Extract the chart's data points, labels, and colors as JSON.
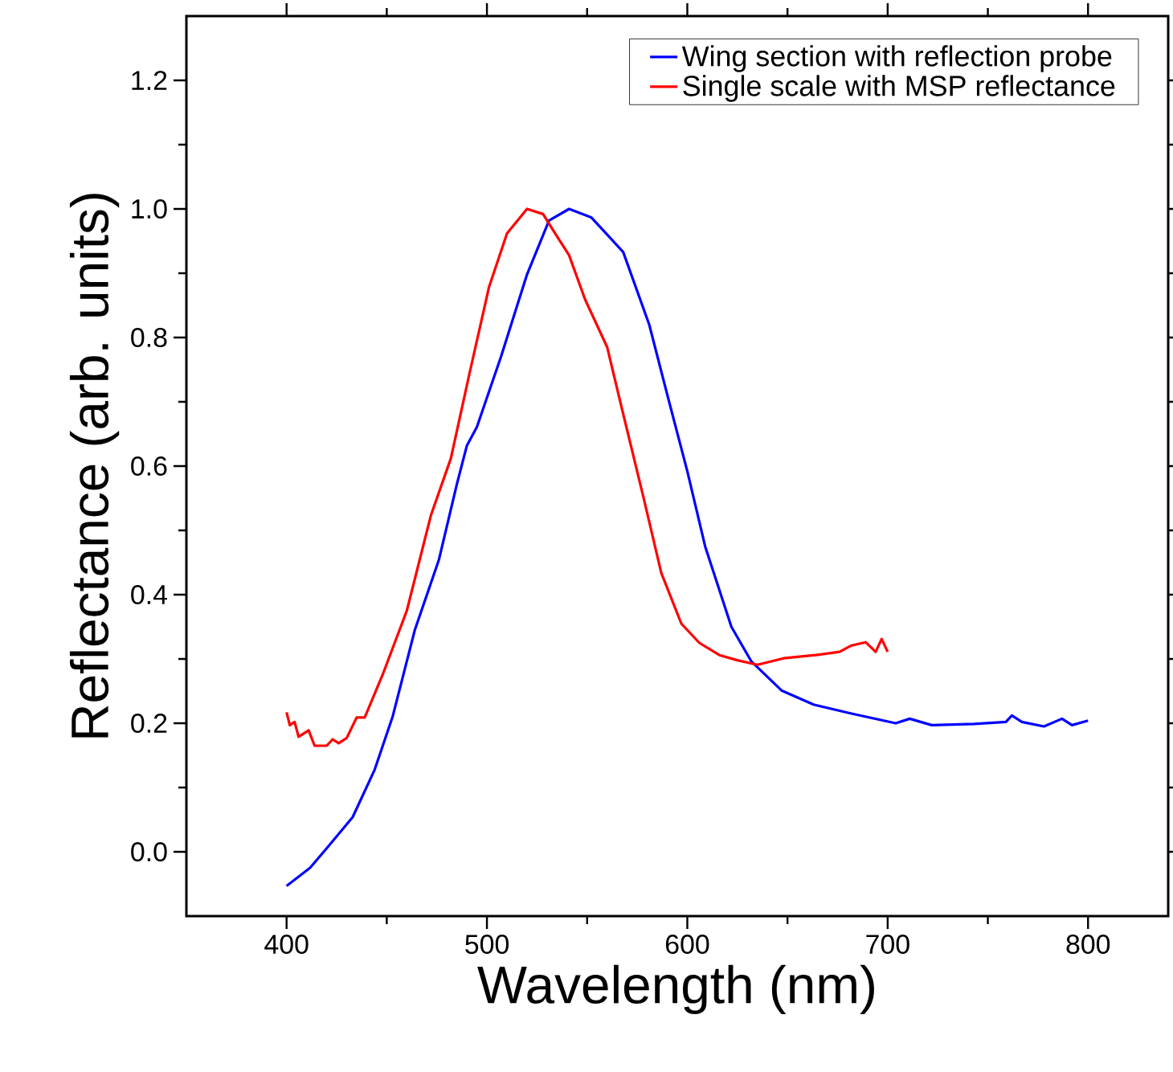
{
  "chart_data": {
    "type": "line",
    "xlabel": "Wavelength (nm)",
    "ylabel": "Reflectance (arb. units)",
    "xlim": [
      350,
      840
    ],
    "ylim": [
      -0.1,
      1.3
    ],
    "xticks": [
      400,
      500,
      600,
      700,
      800
    ],
    "yticks": [
      {
        "value": 0,
        "label": "0.0"
      },
      {
        "value": 0.2,
        "label": "0.2"
      },
      {
        "value": 0.4,
        "label": "0.4"
      },
      {
        "value": 0.6,
        "label": "0.6"
      },
      {
        "value": 0.8,
        "label": "0.8"
      },
      {
        "value": 1,
        "label": "1.0"
      },
      {
        "value": 1.2,
        "label": "1.2"
      }
    ],
    "grid": false,
    "legend": "top right",
    "marker": "none",
    "line_style": "solid",
    "series": [
      {
        "name": "Wing section with reflection probe",
        "color": "#0000ff",
        "x": [
          400,
          411.7,
          421,
          433,
          444,
          453,
          464,
          476,
          485,
          490,
          495,
          507,
          520,
          531,
          541,
          552,
          568,
          581,
          590,
          600,
          609,
          622,
          632,
          647,
          663,
          682,
          704,
          711,
          722,
          743,
          759,
          762,
          767,
          778,
          787,
          792,
          800
        ],
        "values": [
          -0.053,
          -0.025,
          0.009,
          0.054,
          0.128,
          0.211,
          0.345,
          0.454,
          0.572,
          0.632,
          0.661,
          0.77,
          0.898,
          0.982,
          1.0,
          0.987,
          0.933,
          0.82,
          0.711,
          0.592,
          0.474,
          0.35,
          0.296,
          0.251,
          0.229,
          0.215,
          0.2,
          0.207,
          0.197,
          0.199,
          0.202,
          0.212,
          0.202,
          0.195,
          0.207,
          0.197,
          0.204
        ]
      },
      {
        "name": "Single scale with MSP reflectance",
        "color": "#ff0000",
        "x": [
          400,
          401.6,
          404,
          406,
          411,
          414,
          420,
          423,
          426,
          430,
          435,
          439,
          448,
          460,
          472,
          482,
          491,
          501,
          510,
          520,
          528,
          534,
          541,
          549,
          560,
          568,
          578,
          587,
          597,
          606,
          616,
          625,
          635,
          648,
          664,
          676,
          682,
          689,
          694,
          697,
          700
        ],
        "values": [
          0.217,
          0.197,
          0.202,
          0.179,
          0.189,
          0.165,
          0.165,
          0.175,
          0.169,
          0.177,
          0.209,
          0.209,
          0.276,
          0.375,
          0.523,
          0.612,
          0.74,
          0.878,
          0.962,
          1.0,
          0.992,
          0.962,
          0.928,
          0.859,
          0.785,
          0.681,
          0.553,
          0.434,
          0.355,
          0.325,
          0.306,
          0.298,
          0.291,
          0.301,
          0.306,
          0.311,
          0.321,
          0.326,
          0.311,
          0.331,
          0.311
        ]
      }
    ]
  }
}
